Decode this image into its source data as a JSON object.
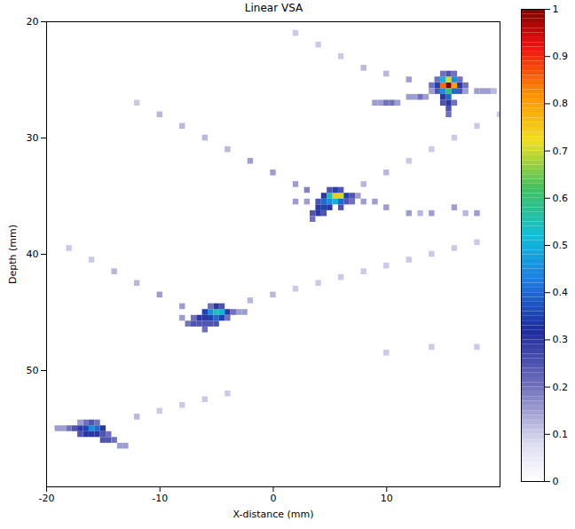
{
  "chart_data": {
    "type": "heatmap",
    "title": "Linear VSA",
    "x_label": "X-distance (mm)",
    "y_label": "Depth (mm)",
    "xlim": [
      -20,
      20
    ],
    "ylim": [
      20,
      60
    ],
    "xticks": [
      -20,
      -10,
      0,
      10
    ],
    "yticks": [
      20,
      30,
      40,
      50
    ],
    "cells": [
      [
        15.5,
        25.5,
        1.0
      ],
      [
        15,
        25.5,
        0.85
      ],
      [
        16,
        25.5,
        0.8
      ],
      [
        15.5,
        25,
        0.7
      ],
      [
        15.5,
        26,
        0.6
      ],
      [
        15,
        26,
        0.45
      ],
      [
        16,
        25,
        0.45
      ],
      [
        15,
        25,
        0.5
      ],
      [
        16,
        26,
        0.4
      ],
      [
        15.5,
        26.5,
        0.4
      ],
      [
        15,
        26.5,
        0.3
      ],
      [
        14.5,
        25.5,
        0.35
      ],
      [
        16.5,
        25.5,
        0.3
      ],
      [
        14.5,
        26,
        0.25
      ],
      [
        16.5,
        26,
        0.25
      ],
      [
        15.5,
        27,
        0.3
      ],
      [
        15.5,
        27.5,
        0.25
      ],
      [
        15.5,
        28,
        0.2
      ],
      [
        15,
        27,
        0.25
      ],
      [
        16,
        27,
        0.2
      ],
      [
        14.5,
        25,
        0.2
      ],
      [
        16.5,
        25,
        0.2
      ],
      [
        15.5,
        24.5,
        0.25
      ],
      [
        15,
        24.5,
        0.2
      ],
      [
        16,
        24.5,
        0.2
      ],
      [
        14,
        25.5,
        0.2
      ],
      [
        17,
        25.5,
        0.2
      ],
      [
        14,
        26,
        0.15
      ],
      [
        17,
        26,
        0.15
      ],
      [
        9,
        27,
        0.15
      ],
      [
        9.5,
        27,
        0.15
      ],
      [
        10,
        27,
        0.2
      ],
      [
        10.5,
        27,
        0.2
      ],
      [
        11,
        27,
        0.15
      ],
      [
        12,
        26.5,
        0.15
      ],
      [
        12.5,
        26.5,
        0.15
      ],
      [
        13,
        26.5,
        0.2
      ],
      [
        13.5,
        26.5,
        0.15
      ],
      [
        18,
        26,
        0.15
      ],
      [
        18.5,
        26,
        0.15
      ],
      [
        19,
        26,
        0.15
      ],
      [
        19.5,
        26,
        0.12
      ],
      [
        5.5,
        35,
        0.75
      ],
      [
        6,
        35,
        0.7
      ],
      [
        5,
        35,
        0.55
      ],
      [
        5.5,
        35.5,
        0.5
      ],
      [
        5,
        35.5,
        0.45
      ],
      [
        6,
        35.5,
        0.4
      ],
      [
        4.5,
        35.5,
        0.4
      ],
      [
        4.5,
        36,
        0.35
      ],
      [
        5.5,
        34.5,
        0.35
      ],
      [
        6.5,
        35,
        0.35
      ],
      [
        4.5,
        35,
        0.3
      ],
      [
        4,
        36,
        0.3
      ],
      [
        4,
        36.5,
        0.3
      ],
      [
        3.5,
        36.5,
        0.25
      ],
      [
        5,
        36,
        0.3
      ],
      [
        6,
        36,
        0.25
      ],
      [
        6.5,
        35.5,
        0.25
      ],
      [
        7,
        35,
        0.25
      ],
      [
        5,
        34.5,
        0.25
      ],
      [
        6,
        34.5,
        0.25
      ],
      [
        4,
        35.5,
        0.25
      ],
      [
        3.5,
        37,
        0.2
      ],
      [
        4.5,
        36.5,
        0.25
      ],
      [
        7,
        35.5,
        0.2
      ],
      [
        7.5,
        35,
        0.15
      ],
      [
        3,
        35.5,
        0.15
      ],
      [
        2,
        35.5,
        0.15
      ],
      [
        8,
        35.5,
        0.15
      ],
      [
        9,
        35.5,
        0.15
      ],
      [
        10,
        36,
        0.15
      ],
      [
        12,
        36.5,
        0.15
      ],
      [
        13,
        36.5,
        0.12
      ],
      [
        14,
        36.5,
        0.15
      ],
      [
        16,
        36,
        0.15
      ],
      [
        17,
        36.5,
        0.12
      ],
      [
        18,
        36.5,
        0.15
      ],
      [
        -5,
        45,
        0.55
      ],
      [
        -4.5,
        45,
        0.5
      ],
      [
        -5.5,
        45,
        0.45
      ],
      [
        -5,
        45.5,
        0.4
      ],
      [
        -4.5,
        45.5,
        0.35
      ],
      [
        -6,
        45,
        0.35
      ],
      [
        -5.5,
        45.5,
        0.35
      ],
      [
        -6,
        45.5,
        0.3
      ],
      [
        -6.5,
        45.5,
        0.3
      ],
      [
        -4,
        45,
        0.3
      ],
      [
        -5,
        44.5,
        0.3
      ],
      [
        -4.5,
        44.5,
        0.25
      ],
      [
        -6.5,
        46,
        0.25
      ],
      [
        -7,
        46,
        0.25
      ],
      [
        -6,
        46,
        0.25
      ],
      [
        -4,
        45.5,
        0.2
      ],
      [
        -3.5,
        45,
        0.2
      ],
      [
        -7,
        45.5,
        0.2
      ],
      [
        -5,
        46,
        0.25
      ],
      [
        -5.5,
        46,
        0.25
      ],
      [
        -7.5,
        46,
        0.2
      ],
      [
        -6,
        46.5,
        0.2
      ],
      [
        -5.5,
        44.5,
        0.2
      ],
      [
        -3,
        45,
        0.15
      ],
      [
        -8,
        45.5,
        0.15
      ],
      [
        -2.5,
        45,
        0.15
      ],
      [
        -16,
        55,
        0.45
      ],
      [
        -15.5,
        55,
        0.4
      ],
      [
        -16.5,
        55,
        0.35
      ],
      [
        -17,
        55,
        0.3
      ],
      [
        -15,
        55,
        0.3
      ],
      [
        -16,
        55.5,
        0.3
      ],
      [
        -16.5,
        55.5,
        0.3
      ],
      [
        -15.5,
        55.5,
        0.3
      ],
      [
        -17.5,
        55,
        0.25
      ],
      [
        -17,
        55.5,
        0.25
      ],
      [
        -15,
        55.5,
        0.25
      ],
      [
        -14.5,
        55.5,
        0.2
      ],
      [
        -14.5,
        56,
        0.25
      ],
      [
        -15,
        56,
        0.25
      ],
      [
        -14,
        56,
        0.2
      ],
      [
        -16,
        54.5,
        0.25
      ],
      [
        -16.5,
        54.5,
        0.2
      ],
      [
        -15.5,
        54.5,
        0.2
      ],
      [
        -18,
        55,
        0.2
      ],
      [
        -18.5,
        55,
        0.15
      ],
      [
        -13.5,
        56.5,
        0.15
      ],
      [
        -13,
        56.5,
        0.15
      ],
      [
        -19,
        55,
        0.15
      ],
      [
        -17,
        54.5,
        0.15
      ],
      [
        -12,
        27,
        0.1
      ],
      [
        -10,
        28,
        0.12
      ],
      [
        -8,
        29,
        0.12
      ],
      [
        -6,
        30,
        0.12
      ],
      [
        -4,
        31,
        0.12
      ],
      [
        -2,
        32,
        0.15
      ],
      [
        0,
        33,
        0.15
      ],
      [
        2,
        34,
        0.15
      ],
      [
        3,
        34.5,
        0.18
      ],
      [
        8,
        34,
        0.12
      ],
      [
        10,
        33,
        0.12
      ],
      [
        12,
        32,
        0.1
      ],
      [
        14,
        31,
        0.1
      ],
      [
        16,
        30,
        0.1
      ],
      [
        18,
        29,
        0.1
      ],
      [
        20,
        28,
        0.1
      ],
      [
        -18,
        39.5,
        0.1
      ],
      [
        -16,
        40.5,
        0.1
      ],
      [
        -14,
        41.5,
        0.12
      ],
      [
        -12,
        42.5,
        0.12
      ],
      [
        -10,
        43.5,
        0.15
      ],
      [
        -8,
        44.5,
        0.15
      ],
      [
        -2,
        44,
        0.12
      ],
      [
        0,
        43.5,
        0.12
      ],
      [
        2,
        43,
        0.1
      ],
      [
        4,
        42.5,
        0.1
      ],
      [
        6,
        42,
        0.1
      ],
      [
        8,
        41.5,
        0.1
      ],
      [
        10,
        41,
        0.1
      ],
      [
        12,
        40.5,
        0.1
      ],
      [
        14,
        40,
        0.1
      ],
      [
        16,
        39.5,
        0.1
      ],
      [
        18,
        39,
        0.1
      ],
      [
        2,
        21,
        0.1
      ],
      [
        4,
        22,
        0.1
      ],
      [
        6,
        23,
        0.1
      ],
      [
        8,
        24,
        0.12
      ],
      [
        10,
        24.5,
        0.12
      ],
      [
        12,
        25,
        0.15
      ],
      [
        -12,
        54,
        0.12
      ],
      [
        -10,
        53.5,
        0.1
      ],
      [
        -8,
        53,
        0.1
      ],
      [
        -6,
        52.5,
        0.1
      ],
      [
        -4,
        52,
        0.1
      ],
      [
        10,
        48.5,
        0.1
      ],
      [
        14,
        48,
        0.1
      ],
      [
        18,
        48,
        0.1
      ]
    ],
    "color_bar": {
      "range": [
        0,
        1
      ],
      "ticks": [
        0,
        0.1,
        0.2,
        0.3,
        0.4,
        0.5,
        0.6,
        0.7,
        0.8,
        0.9,
        1
      ]
    }
  }
}
